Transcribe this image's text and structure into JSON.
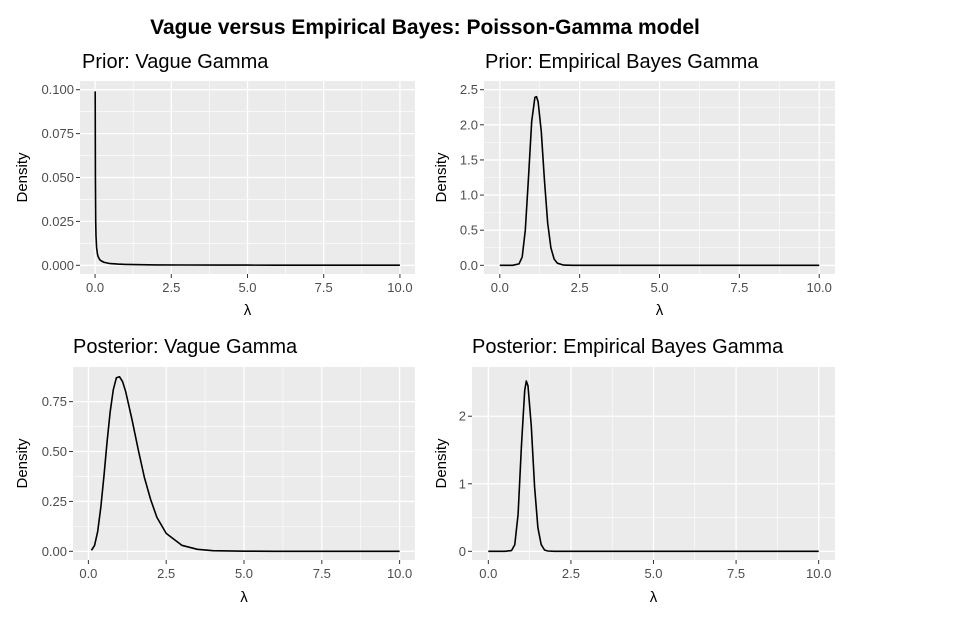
{
  "title": "Vague versus Empirical Bayes: Poisson-Gamma model",
  "chart_data": [
    {
      "type": "line",
      "title": "Prior: Vague Gamma",
      "xlabel": "λ",
      "ylabel": "Density",
      "xlim": [
        0,
        10
      ],
      "ylim": [
        0,
        0.1
      ],
      "xticks": [
        0,
        2.5,
        5,
        7.5,
        10
      ],
      "xtick_labels": [
        "0.0",
        "2.5",
        "5.0",
        "7.5",
        "10.0"
      ],
      "yticks": [
        0,
        0.025,
        0.05,
        0.075,
        0.1
      ],
      "ytick_labels": [
        "0.000",
        "0.025",
        "0.050",
        "0.075",
        "0.100"
      ],
      "grid": true,
      "series": [
        {
          "x": [
            0.005,
            0.01,
            0.02,
            0.03,
            0.05,
            0.08,
            0.1,
            0.15,
            0.2,
            0.3,
            0.5,
            0.75,
            1,
            1.5,
            2,
            3,
            4,
            5,
            6,
            7,
            8,
            9,
            10
          ],
          "values": [
            0.099,
            0.05,
            0.025,
            0.0167,
            0.01,
            0.00625,
            0.005,
            0.0033,
            0.0025,
            0.00167,
            0.001,
            0.00067,
            0.0005,
            0.00033,
            0.00025,
            0.00017,
            0.000125,
            0.0001,
            8e-05,
            7e-05,
            6e-05,
            5e-05,
            4e-05
          ]
        }
      ]
    },
    {
      "type": "line",
      "title": "Prior: Empirical Bayes Gamma",
      "xlabel": "λ",
      "ylabel": "Density",
      "xlim": [
        0,
        10
      ],
      "ylim": [
        0,
        2.5
      ],
      "xticks": [
        0,
        2.5,
        5,
        7.5,
        10
      ],
      "xtick_labels": [
        "0.0",
        "2.5",
        "5.0",
        "7.5",
        "10.0"
      ],
      "yticks": [
        0,
        0.5,
        1,
        1.5,
        2,
        2.5
      ],
      "ytick_labels": [
        "0.0",
        "0.5",
        "1.0",
        "1.5",
        "2.0",
        "2.5"
      ],
      "grid": true,
      "series": [
        {
          "x": [
            0,
            0.4,
            0.6,
            0.7,
            0.8,
            0.9,
            1.0,
            1.1,
            1.15,
            1.2,
            1.3,
            1.4,
            1.5,
            1.6,
            1.7,
            1.8,
            2.0,
            2.3,
            3,
            5,
            7.5,
            10
          ],
          "values": [
            0,
            0.0,
            0.02,
            0.12,
            0.5,
            1.25,
            2.05,
            2.39,
            2.4,
            2.33,
            1.9,
            1.2,
            0.6,
            0.25,
            0.09,
            0.03,
            0.003,
            0,
            0,
            0,
            0,
            0
          ]
        }
      ]
    },
    {
      "type": "line",
      "title": "Posterior: Vague Gamma",
      "xlabel": "λ",
      "ylabel": "Density",
      "xlim": [
        0,
        10
      ],
      "ylim": [
        0,
        0.88
      ],
      "xticks": [
        0,
        2.5,
        5,
        7.5,
        10
      ],
      "xtick_labels": [
        "0.0",
        "2.5",
        "5.0",
        "7.5",
        "10.0"
      ],
      "yticks": [
        0,
        0.25,
        0.5,
        0.75
      ],
      "ytick_labels": [
        "0.00",
        "0.25",
        "0.50",
        "0.75"
      ],
      "grid": true,
      "series": [
        {
          "x": [
            0.1,
            0.2,
            0.3,
            0.4,
            0.5,
            0.6,
            0.7,
            0.8,
            0.9,
            1.0,
            1.1,
            1.2,
            1.4,
            1.6,
            1.8,
            2.0,
            2.2,
            2.5,
            3.0,
            3.5,
            4.0,
            5,
            6,
            8,
            10
          ],
          "values": [
            0.005,
            0.03,
            0.1,
            0.22,
            0.38,
            0.55,
            0.7,
            0.81,
            0.87,
            0.875,
            0.85,
            0.8,
            0.66,
            0.51,
            0.37,
            0.26,
            0.17,
            0.09,
            0.03,
            0.01,
            0.003,
            0.0005,
            0,
            0,
            0
          ]
        }
      ]
    },
    {
      "type": "line",
      "title": "Posterior: Empirical Bayes Gamma",
      "xlabel": "λ",
      "ylabel": "Density",
      "xlim": [
        0,
        10
      ],
      "ylim": [
        0,
        2.6
      ],
      "xticks": [
        0,
        2.5,
        5,
        7.5,
        10
      ],
      "xtick_labels": [
        "0.0",
        "2.5",
        "5.0",
        "7.5",
        "10.0"
      ],
      "yticks": [
        0,
        1,
        2
      ],
      "ytick_labels": [
        "0",
        "1",
        "2"
      ],
      "grid": true,
      "series": [
        {
          "x": [
            0,
            0.5,
            0.7,
            0.8,
            0.9,
            1.0,
            1.1,
            1.15,
            1.2,
            1.3,
            1.4,
            1.5,
            1.6,
            1.7,
            1.8,
            2.0,
            2.5,
            5,
            7.5,
            10
          ],
          "values": [
            0,
            0,
            0.01,
            0.1,
            0.55,
            1.55,
            2.38,
            2.52,
            2.45,
            1.85,
            0.95,
            0.35,
            0.1,
            0.02,
            0.005,
            0,
            0,
            0,
            0,
            0
          ]
        }
      ]
    }
  ]
}
